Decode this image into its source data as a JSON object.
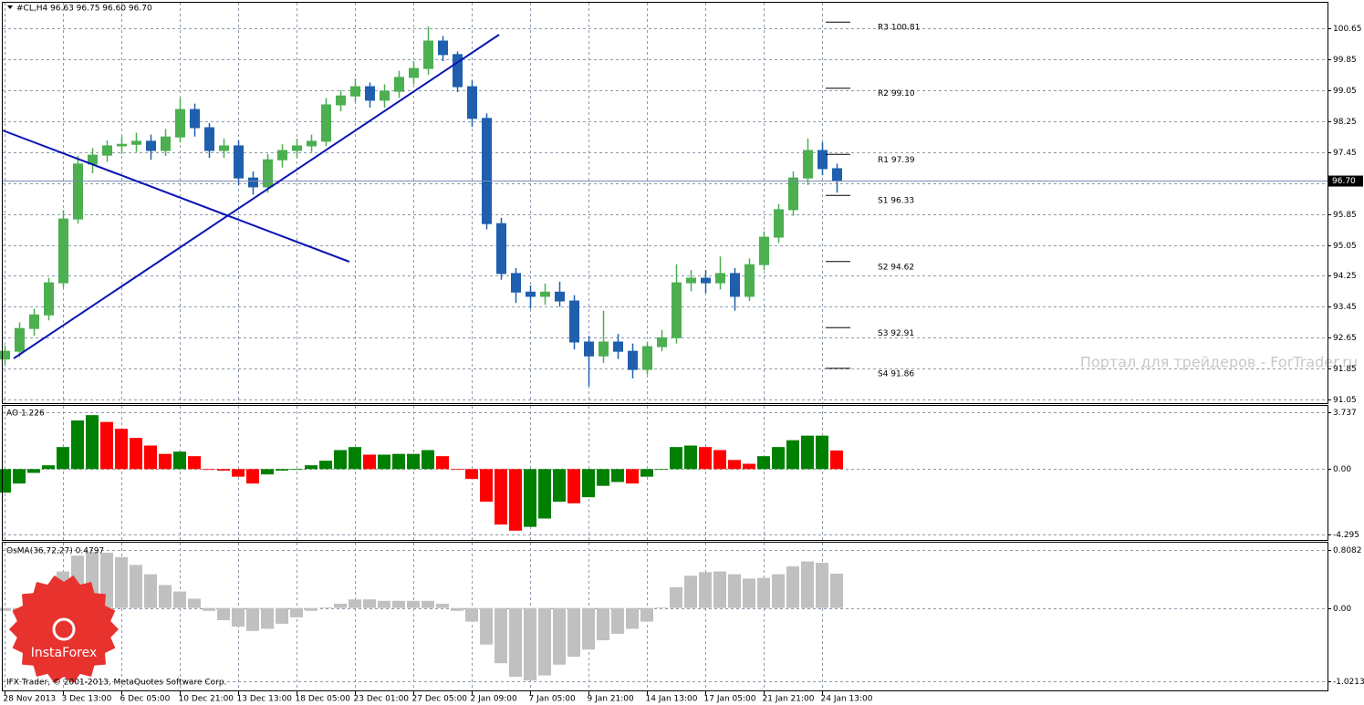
{
  "chart_data": [
    {
      "type": "candlestick",
      "title": "#CL,H4 96.63 96.75 96.60 96.70",
      "watermark": "Портал для трейдеров - ForTrader.ru",
      "up_color": "#4caf50",
      "down_color": "#1f5fae",
      "open": [
        92.1,
        92.3,
        92.89,
        93.24,
        94.07,
        95.72,
        97.14,
        97.37,
        97.61,
        97.65,
        97.73,
        97.49,
        97.84,
        98.55,
        98.08,
        97.49,
        97.61,
        96.78,
        96.55,
        97.25,
        97.49,
        97.61,
        97.73,
        98.67,
        98.9,
        99.14,
        98.79,
        99.02,
        99.38,
        99.61,
        100.32,
        99.97,
        99.14,
        98.32,
        95.6,
        94.31,
        93.83,
        93.72,
        93.83,
        93.6,
        92.54,
        92.18,
        92.54,
        92.3,
        91.83,
        92.42,
        92.65,
        94.07,
        94.19,
        94.07,
        94.31,
        93.72,
        94.54,
        95.25,
        95.96,
        96.78,
        97.49,
        97.02
      ],
      "high": [
        92.45,
        93.05,
        93.4,
        94.2,
        95.95,
        97.35,
        97.55,
        97.75,
        97.85,
        97.95,
        97.9,
        98.05,
        98.85,
        98.7,
        98.2,
        97.8,
        97.75,
        96.95,
        97.4,
        97.65,
        97.8,
        97.9,
        98.85,
        99.05,
        99.35,
        99.25,
        99.2,
        99.55,
        99.8,
        100.7,
        100.45,
        100.05,
        99.3,
        98.45,
        95.75,
        94.45,
        94.0,
        94.05,
        94.1,
        93.75,
        92.7,
        93.35,
        92.75,
        92.5,
        92.55,
        92.85,
        94.55,
        94.4,
        94.4,
        94.75,
        94.45,
        94.7,
        95.4,
        96.1,
        96.95,
        97.8,
        97.7,
        97.15
      ],
      "low": [
        91.95,
        92.15,
        92.7,
        93.1,
        93.95,
        95.6,
        96.9,
        97.2,
        97.4,
        97.45,
        97.25,
        97.35,
        97.7,
        97.85,
        97.3,
        97.3,
        96.6,
        96.35,
        96.4,
        97.05,
        97.3,
        97.45,
        97.6,
        98.5,
        98.75,
        98.6,
        98.6,
        98.85,
        99.2,
        99.45,
        99.8,
        99.0,
        98.1,
        95.45,
        94.15,
        93.55,
        93.4,
        93.5,
        93.45,
        92.35,
        91.4,
        92.0,
        92.1,
        91.6,
        91.7,
        92.3,
        92.5,
        93.85,
        93.8,
        93.9,
        93.35,
        93.6,
        94.4,
        95.1,
        95.8,
        96.6,
        96.85,
        96.4
      ],
      "close": [
        92.3,
        92.89,
        93.24,
        94.07,
        95.72,
        97.14,
        97.37,
        97.61,
        97.65,
        97.73,
        97.49,
        97.84,
        98.55,
        98.08,
        97.49,
        97.61,
        96.78,
        96.55,
        97.25,
        97.49,
        97.61,
        97.73,
        98.67,
        98.9,
        99.14,
        98.79,
        99.02,
        99.38,
        99.61,
        100.32,
        99.97,
        99.14,
        98.32,
        95.6,
        94.31,
        93.83,
        93.72,
        93.83,
        93.6,
        92.54,
        92.18,
        92.54,
        92.3,
        91.83,
        92.42,
        92.65,
        94.07,
        94.19,
        94.07,
        94.31,
        93.72,
        94.54,
        95.25,
        95.96,
        96.78,
        97.49,
        97.02,
        96.7
      ],
      "last_price": {
        "value": 96.7,
        "label": "96.70"
      },
      "pivots": [
        {
          "value": 100.81,
          "label": "R3 100.81"
        },
        {
          "value": 99.1,
          "label": "R2 99.10"
        },
        {
          "value": 97.39,
          "label": "R1 97.39"
        },
        {
          "value": 96.33,
          "label": "S1 96.33"
        },
        {
          "value": 94.62,
          "label": "S2 94.62"
        },
        {
          "value": 92.91,
          "label": "S3 92.91"
        },
        {
          "value": 91.86,
          "label": "S4 91.86"
        }
      ],
      "xlim": [
        -0.125,
        90.625
      ],
      "xticks": [
        {
          "value": 0,
          "label": "28 Nov 2013"
        },
        {
          "value": 4,
          "label": "3 Dec 13:00"
        },
        {
          "value": 8,
          "label": "6 Dec 05:00"
        },
        {
          "value": 12,
          "label": "10 Dec 21:00"
        },
        {
          "value": 16,
          "label": "13 Dec 13:00"
        },
        {
          "value": 20,
          "label": "18 Dec 05:00"
        },
        {
          "value": 24,
          "label": "23 Dec 01:00"
        },
        {
          "value": 28,
          "label": "27 Dec 05:00"
        },
        {
          "value": 32,
          "label": "2 Jan 09:00"
        },
        {
          "value": 36,
          "label": "7 Jan 05:00"
        },
        {
          "value": 40,
          "label": "9 Jan 21:00"
        },
        {
          "value": 44,
          "label": "14 Jan 13:00"
        },
        {
          "value": 48,
          "label": "17 Jan 05:00"
        },
        {
          "value": 52,
          "label": "21 Jan 21:00"
        },
        {
          "value": 56,
          "label": "24 Jan 13:00"
        }
      ],
      "ylim": [
        90.96,
        101.31
      ],
      "yticks": [
        100.65,
        99.85,
        99.05,
        98.25,
        97.45,
        96.65,
        95.85,
        95.05,
        94.25,
        93.45,
        92.65,
        91.85,
        91.05
      ],
      "grid": true
    },
    {
      "type": "bar",
      "title": "AO 1.226",
      "up_color": "#008000",
      "down_color": "#ff0000",
      "values": [
        -1.55,
        -0.95,
        -0.25,
        0.25,
        1.45,
        3.2,
        3.55,
        3.1,
        2.65,
        2.05,
        1.55,
        1.0,
        1.15,
        0.85,
        -0.05,
        -0.1,
        -0.5,
        -0.95,
        -0.35,
        -0.1,
        -0.05,
        0.25,
        0.55,
        1.25,
        1.45,
        0.95,
        0.95,
        1.0,
        1.0,
        1.25,
        0.85,
        -0.05,
        -0.65,
        -2.15,
        -3.65,
        -4.05,
        -3.8,
        -3.25,
        -2.15,
        -2.25,
        -1.85,
        -1.1,
        -0.85,
        -0.95,
        -0.5,
        -0.05,
        1.45,
        1.55,
        1.45,
        1.25,
        0.6,
        0.35,
        0.85,
        1.45,
        1.9,
        2.2,
        2.2,
        1.226
      ],
      "ylim": [
        -4.66,
        4.16
      ],
      "yticks": [
        3.737,
        {
          "value": 0,
          "label": "0.00"
        },
        -4.295
      ],
      "grid": true
    },
    {
      "type": "bar",
      "title": "OsMA(36,72,27) 0.4797",
      "color": "#c0c0c0",
      "copyright": "IFX Trader, © 2001-2013, MetaQuotes Software Corp.",
      "logo": "InstaForex",
      "values": [
        -0.04,
        -0.09,
        0.06,
        0.26,
        0.51,
        0.73,
        0.78,
        0.77,
        0.71,
        0.6,
        0.47,
        0.32,
        0.23,
        0.13,
        -0.04,
        -0.17,
        -0.26,
        -0.32,
        -0.29,
        -0.22,
        -0.13,
        -0.04,
        0.01,
        0.06,
        0.12,
        0.12,
        0.1,
        0.1,
        0.1,
        0.1,
        0.06,
        -0.04,
        -0.19,
        -0.51,
        -0.77,
        -0.96,
        -1.01,
        -0.94,
        -0.79,
        -0.68,
        -0.58,
        -0.45,
        -0.36,
        -0.29,
        -0.19,
        0.01,
        0.29,
        0.45,
        0.5,
        0.51,
        0.47,
        0.41,
        0.42,
        0.47,
        0.58,
        0.65,
        0.63,
        0.4797
      ],
      "ylim": [
        -1.149,
        0.911
      ],
      "yticks": [
        0.8082,
        {
          "value": 0,
          "label": "0.00"
        },
        -1.0213
      ],
      "grid": true
    }
  ]
}
